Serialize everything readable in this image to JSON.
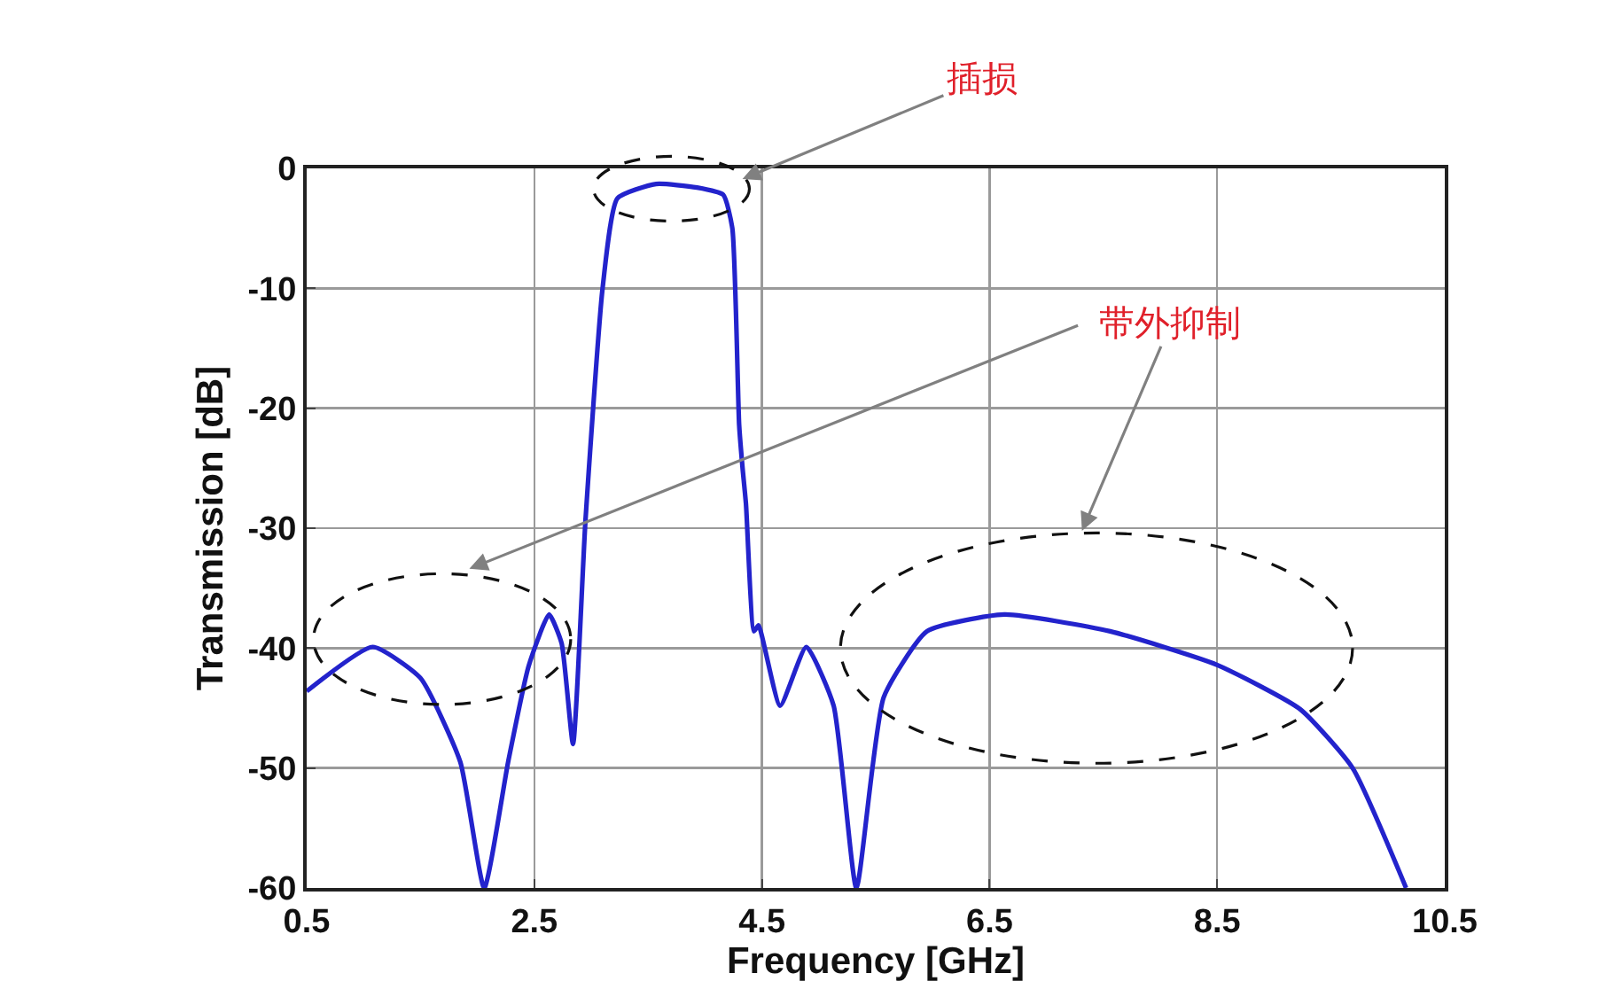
{
  "chart_data": {
    "type": "line",
    "xlabel": "Frequency [GHz]",
    "ylabel": "Transmission [dB]",
    "x": [
      0.5,
      1.08,
      1.5,
      1.85,
      2.06,
      2.27,
      2.45,
      2.63,
      2.74,
      2.84,
      2.95,
      3.1,
      3.23,
      3.57,
      3.93,
      4.16,
      4.24,
      4.3,
      4.33,
      4.36,
      4.43,
      4.47,
      4.66,
      4.89,
      5.13,
      5.33,
      5.57,
      5.95,
      6.63,
      7.56,
      8.5,
      9.23,
      9.69,
      10.16
    ],
    "series": [
      {
        "color": "#2323cc",
        "values": [
          -43.6,
          -39.9,
          -42.5,
          -49.5,
          -60,
          -49.5,
          -41.5,
          -37.2,
          -39.6,
          -48,
          -29.3,
          -10,
          -2.5,
          -1.3,
          -1.6,
          -2.2,
          -5,
          -21.4,
          -25,
          -28,
          -38.6,
          -38.1,
          -44.8,
          -39.9,
          -44.8,
          -60,
          -44.1,
          -38.6,
          -37.2,
          -38.6,
          -41.4,
          -45.1,
          -50,
          -60
        ]
      }
    ],
    "xlim": [
      0.5,
      10.5
    ],
    "xticks": [
      0.5,
      2.5,
      4.5,
      6.5,
      8.5,
      10.5
    ],
    "ylim": [
      -60,
      0
    ],
    "yticks": [
      -60,
      -50,
      -40,
      -30,
      -20,
      -10,
      0
    ],
    "grid": true,
    "marker": "none",
    "line_style": "solid",
    "annotations": [
      "插损",
      "带外抑制"
    ]
  }
}
